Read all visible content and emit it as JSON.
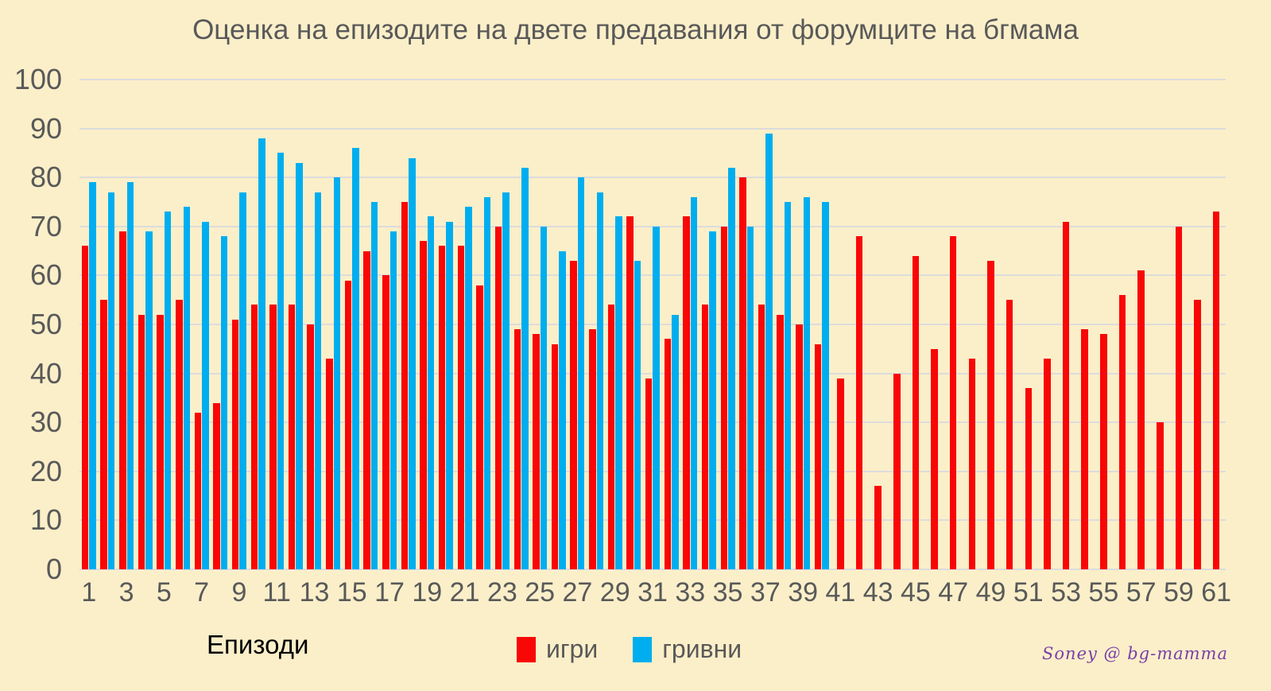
{
  "title": "Оценка на епизодите на двете предавания от форумците на бгмама",
  "x_axis_title": "Епизоди",
  "watermark": "Soney @ bg-mamma",
  "colors": {
    "background": "#FBEFC9",
    "bar_red": "#F90606",
    "bar_blue": "#00AEEF",
    "gridline": "#DCDCDC",
    "axis_text": "#595959",
    "x_axis_title_text": "#000000",
    "watermark_text": "#7B3FA8"
  },
  "chart_data": {
    "type": "bar",
    "title": "Оценка на епизодите на двете предавания от форумците на бгмама",
    "xlabel": "Епизоди",
    "ylabel": "",
    "ylim": [
      0,
      100
    ],
    "yticks": [
      0,
      10,
      20,
      30,
      40,
      50,
      60,
      70,
      80,
      90,
      100
    ],
    "grid": true,
    "legend_position": "bottom",
    "categories": [
      1,
      2,
      3,
      4,
      5,
      6,
      7,
      8,
      9,
      10,
      11,
      12,
      13,
      14,
      15,
      16,
      17,
      18,
      19,
      20,
      21,
      22,
      23,
      24,
      25,
      26,
      27,
      28,
      29,
      30,
      31,
      32,
      33,
      34,
      35,
      36,
      37,
      38,
      39,
      40,
      41,
      42,
      43,
      44,
      45,
      46,
      47,
      48,
      49,
      50,
      51,
      52,
      53,
      54,
      55,
      56,
      57,
      58,
      59,
      60,
      61
    ],
    "xtick_labels": [
      1,
      3,
      5,
      7,
      9,
      11,
      13,
      15,
      17,
      19,
      21,
      23,
      25,
      27,
      29,
      31,
      33,
      35,
      37,
      39,
      41,
      43,
      45,
      47,
      49,
      51,
      53,
      55,
      57,
      59,
      61
    ],
    "series": [
      {
        "name": "игри",
        "color": "#F90606",
        "values": [
          66,
          55,
          69,
          52,
          52,
          55,
          32,
          34,
          51,
          54,
          54,
          54,
          50,
          43,
          59,
          65,
          60,
          75,
          67,
          66,
          66,
          58,
          70,
          49,
          48,
          46,
          63,
          49,
          54,
          72,
          39,
          47,
          72,
          54,
          70,
          80,
          54,
          52,
          50,
          46,
          39,
          68,
          17,
          40,
          64,
          45,
          68,
          43,
          63,
          55,
          37,
          43,
          71,
          49,
          48,
          56,
          61,
          30,
          70,
          55,
          73
        ]
      },
      {
        "name": "гривни",
        "color": "#00AEEF",
        "values": [
          79,
          77,
          79,
          69,
          73,
          74,
          71,
          68,
          77,
          88,
          85,
          83,
          77,
          80,
          86,
          75,
          69,
          84,
          72,
          71,
          74,
          76,
          77,
          82,
          70,
          65,
          80,
          77,
          72,
          63,
          70,
          52,
          76,
          69,
          82,
          70,
          89,
          75,
          76,
          75,
          null,
          null,
          null,
          null,
          null,
          null,
          null,
          null,
          null,
          null,
          null,
          null,
          null,
          null,
          null,
          null,
          null,
          null,
          null,
          null,
          null
        ]
      }
    ]
  }
}
